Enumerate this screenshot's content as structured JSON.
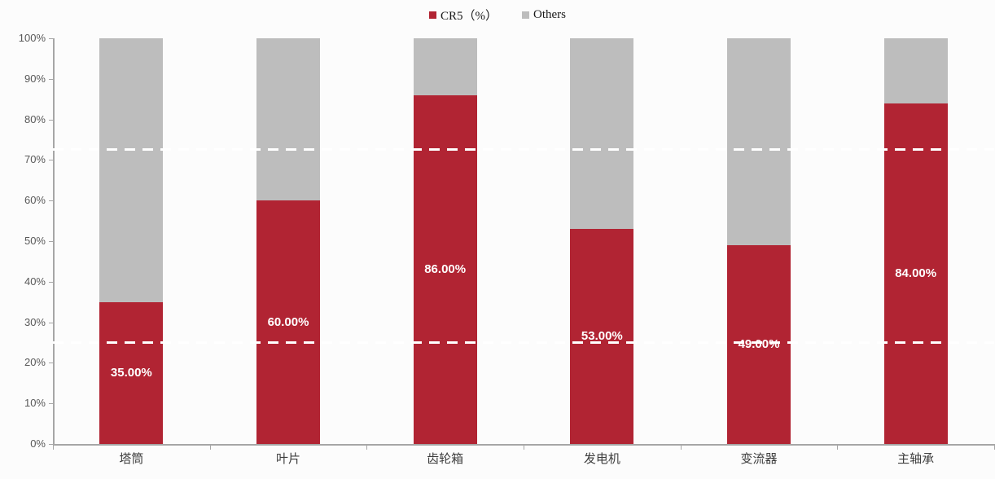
{
  "chart_data": {
    "type": "bar",
    "stacked": true,
    "title": "",
    "categories": [
      "塔筒",
      "叶片",
      "齿轮箱",
      "发电机",
      "变流器",
      "主轴承"
    ],
    "series": [
      {
        "name": "CR5（%）",
        "color": "#b12433",
        "values": [
          35,
          60,
          86,
          53,
          49,
          84
        ]
      },
      {
        "name": "Others",
        "color": "#bdbdbd",
        "values": [
          65,
          40,
          14,
          47,
          51,
          16
        ]
      }
    ],
    "value_labels": [
      "35.00%",
      "60.00%",
      "86.00%",
      "53.00%",
      "49.00%",
      "84.00%"
    ],
    "ylim": [
      0,
      100
    ],
    "y_ticks": [
      "0%",
      "10%",
      "20%",
      "30%",
      "40%",
      "50%",
      "60%",
      "70%",
      "80%",
      "90%",
      "100%"
    ],
    "grid": false,
    "legend_position": "top-center",
    "axis_color": "#a6a6a6",
    "reference_lines": [
      {
        "value": 72.5,
        "color": "#ffffff",
        "style": "dashed"
      },
      {
        "value": 25,
        "color": "#ffffff",
        "style": "dashed"
      }
    ]
  }
}
